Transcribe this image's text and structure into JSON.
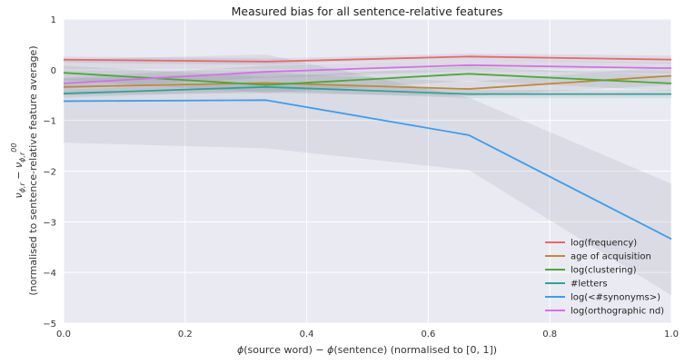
{
  "chart_data": {
    "type": "line",
    "title": "Measured bias for all sentence-relative features",
    "xlabel": "ϕ(source word) − ϕ(sentence) (normalised to [0, 1])",
    "ylabel_line1": "ν_{ϕ,r} − ν_{ϕ,r}^{00}",
    "ylabel_line2": "(normalised to sentence-relative feature average)",
    "xlim": [
      0.0,
      1.0
    ],
    "ylim": [
      -5,
      1
    ],
    "xticks": [
      "0.0",
      "0.2",
      "0.4",
      "0.6",
      "0.8",
      "1.0"
    ],
    "yticks": [
      "1",
      "0",
      "−1",
      "−2",
      "−3",
      "−4",
      "−5"
    ],
    "grid": true,
    "legend_position": "bottom-right",
    "x": [
      0.0,
      0.3333,
      0.6667,
      1.0
    ],
    "series": [
      {
        "name": "log(frequency)",
        "color": "#f0636b",
        "values": [
          0.2,
          0.16,
          0.26,
          0.2
        ],
        "lower": [
          0.14,
          0.1,
          0.2,
          0.12
        ],
        "upper": [
          0.26,
          0.22,
          0.32,
          0.28
        ]
      },
      {
        "name": "age of acquisition",
        "color": "#c08a32",
        "values": [
          -0.34,
          -0.26,
          -0.38,
          -0.12
        ],
        "lower": [
          -0.5,
          -0.46,
          -0.52,
          -0.3
        ],
        "upper": [
          -0.18,
          -0.06,
          -0.24,
          0.06
        ]
      },
      {
        "name": "log(clustering)",
        "color": "#4aaa33",
        "values": [
          -0.06,
          -0.3,
          -0.08,
          -0.27
        ],
        "lower": [
          -0.2,
          -0.46,
          -0.22,
          -0.42
        ],
        "upper": [
          0.08,
          -0.14,
          0.06,
          -0.12
        ]
      },
      {
        "name": "#letters",
        "color": "#2aa597",
        "values": [
          -0.47,
          -0.34,
          -0.48,
          -0.48
        ],
        "lower": [
          -0.55,
          -0.42,
          -0.56,
          -0.56
        ],
        "upper": [
          -0.39,
          -0.26,
          -0.4,
          -0.4
        ]
      },
      {
        "name": "log(<#synonyms>)",
        "color": "#3a9ef0",
        "values": [
          -0.62,
          -0.6,
          -1.29,
          -3.34
        ],
        "lower": [
          -1.44,
          -1.55,
          -1.98,
          -4.45
        ],
        "upper": [
          0.2,
          0.3,
          -0.55,
          -2.25
        ]
      },
      {
        "name": "log(orthographic nd)",
        "color": "#d96ee6",
        "values": [
          -0.27,
          -0.04,
          0.09,
          0.03
        ],
        "lower": [
          -0.38,
          -0.16,
          -0.02,
          -0.08
        ],
        "upper": [
          -0.16,
          0.08,
          0.2,
          0.14
        ]
      }
    ]
  }
}
